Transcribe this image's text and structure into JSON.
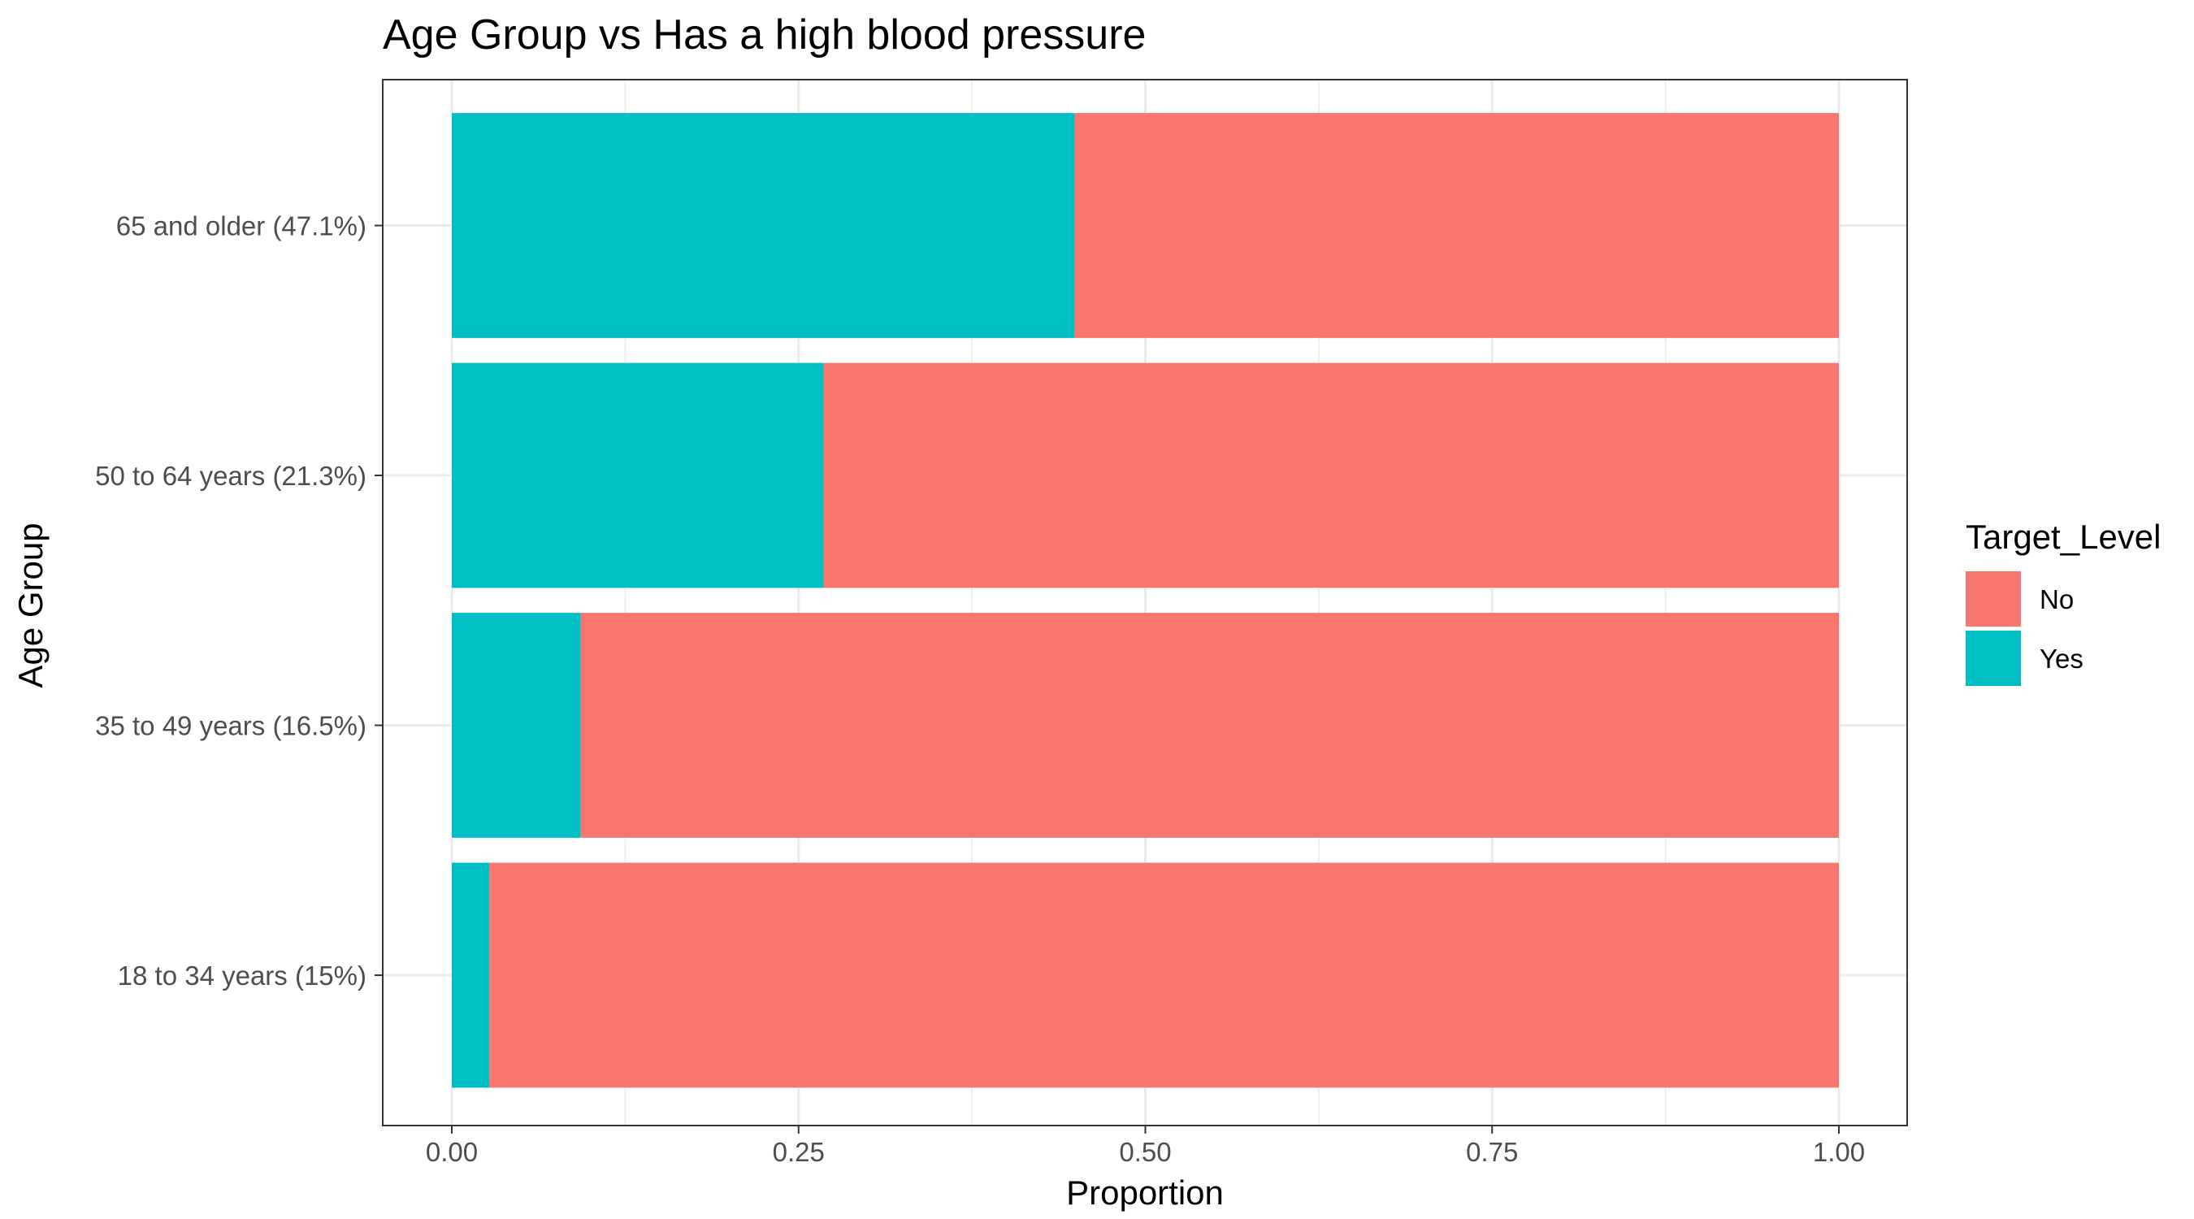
{
  "chart_data": {
    "type": "bar",
    "orientation": "horizontal",
    "stacked": true,
    "title": "Age Group vs Has a high blood pressure",
    "xlabel": "Proportion",
    "ylabel": "Age Group",
    "xlim": [
      0,
      1
    ],
    "xticks": [
      "0.00",
      "0.25",
      "0.50",
      "0.75",
      "1.00"
    ],
    "categories": [
      "18 to 34 years (15%)",
      "35 to 49 years (16.5%)",
      "50 to 64 years (21.3%)",
      "65 and older (47.1%)"
    ],
    "series": [
      {
        "name": "Yes",
        "values": [
          0.027,
          0.093,
          0.268,
          0.449
        ],
        "color": "#00BFC4"
      },
      {
        "name": "No",
        "values": [
          0.973,
          0.907,
          0.732,
          0.551
        ],
        "color": "#F8766D"
      }
    ],
    "legend": {
      "title": "Target_Level",
      "position": "right",
      "items": [
        {
          "label": "No",
          "color": "#F8766D"
        },
        {
          "label": "Yes",
          "color": "#00BFC4"
        }
      ]
    },
    "grid": true,
    "panel_border_color": "#333333",
    "grid_color": "#ebebeb"
  }
}
